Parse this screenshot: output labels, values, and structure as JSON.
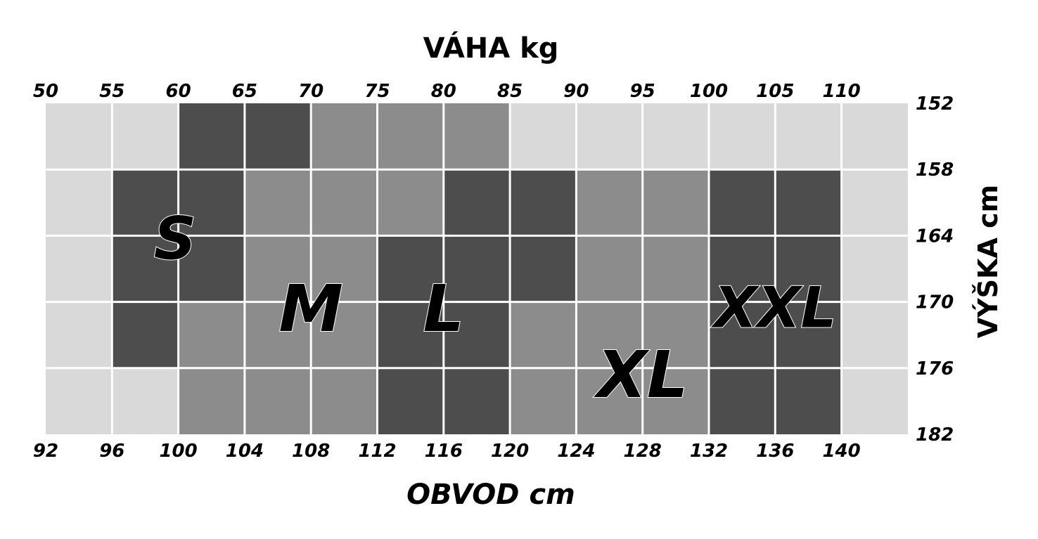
{
  "chart_data": {
    "type": "heatmap",
    "top_axis_title": "VÁHA kg",
    "bottom_axis_title": "OBVOD cm",
    "right_axis_title": "VÝŠKA cm",
    "top_ticks": [
      "50",
      "55",
      "60",
      "65",
      "70",
      "75",
      "80",
      "85",
      "90",
      "95",
      "100",
      "105",
      "110"
    ],
    "bottom_ticks": [
      "92",
      "96",
      "100",
      "104",
      "108",
      "112",
      "116",
      "120",
      "124",
      "128",
      "132",
      "136",
      "140"
    ],
    "right_ticks": [
      "152",
      "158",
      "164",
      "170",
      "176",
      "182"
    ],
    "columns": 13,
    "rows": 5,
    "shade_colors": {
      "light": "#d9d9d9",
      "mid": "#8c8c8c",
      "dark": "#4d4d4d"
    },
    "grid_colors": [
      "#ffffff",
      "#ffffff"
    ],
    "cells": [
      [
        "light",
        "light",
        "dark",
        "dark",
        "mid",
        "mid",
        "mid",
        "light",
        "light",
        "light",
        "light",
        "light",
        "light"
      ],
      [
        "light",
        "dark",
        "dark",
        "mid",
        "mid",
        "mid",
        "dark",
        "dark",
        "mid",
        "mid",
        "dark",
        "dark",
        "light"
      ],
      [
        "light",
        "dark",
        "dark",
        "mid",
        "mid",
        "dark",
        "dark",
        "dark",
        "mid",
        "mid",
        "dark",
        "dark",
        "light"
      ],
      [
        "light",
        "dark",
        "mid",
        "mid",
        "mid",
        "dark",
        "dark",
        "mid",
        "mid",
        "mid",
        "dark",
        "dark",
        "light"
      ],
      [
        "light",
        "light",
        "mid",
        "mid",
        "mid",
        "dark",
        "dark",
        "mid",
        "mid",
        "mid",
        "dark",
        "dark",
        "light"
      ]
    ],
    "size_labels": [
      {
        "text": "S",
        "col": 1.95,
        "row": 1.95,
        "scale": 1.0
      },
      {
        "text": "M",
        "col": 4.0,
        "row": 3.0,
        "scale": 1.1
      },
      {
        "text": "L",
        "col": 6.0,
        "row": 3.0,
        "scale": 1.1
      },
      {
        "text": "XL",
        "col": 9.0,
        "row": 4.0,
        "scale": 1.1
      },
      {
        "text": "XXL",
        "col": 11.0,
        "row": 3.0,
        "scale": 0.95
      }
    ]
  }
}
